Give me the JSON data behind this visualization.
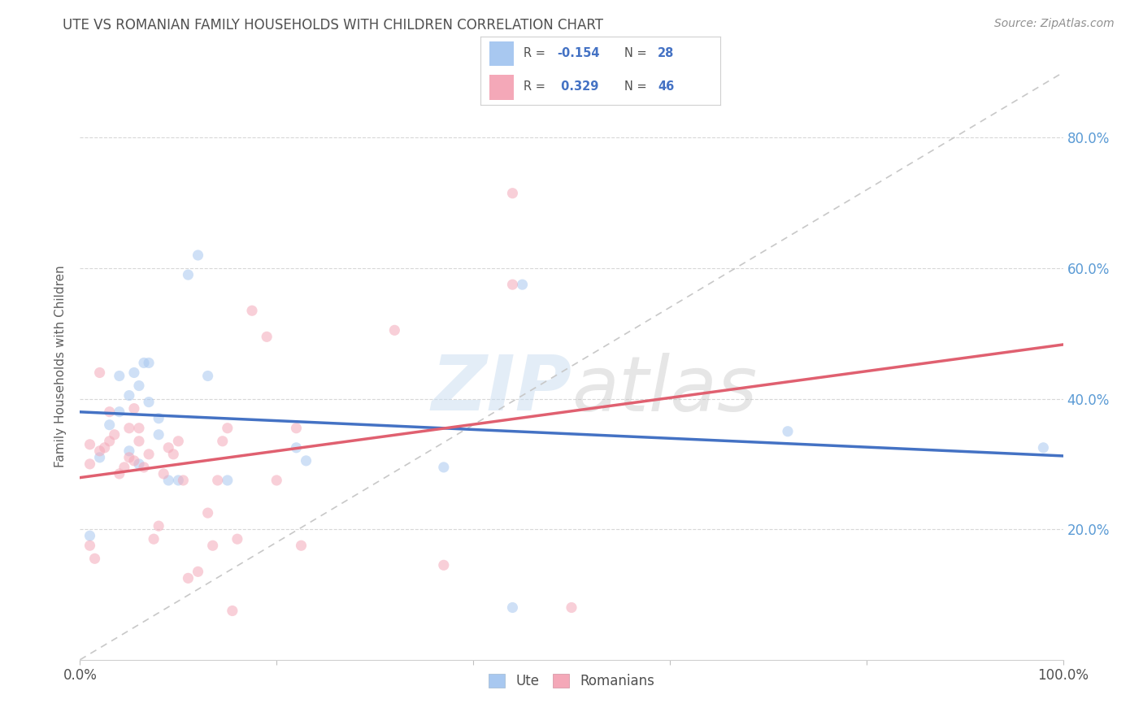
{
  "title": "UTE VS ROMANIAN FAMILY HOUSEHOLDS WITH CHILDREN CORRELATION CHART",
  "source": "Source: ZipAtlas.com",
  "ylabel": "Family Households with Children",
  "xlim": [
    0.0,
    1.0
  ],
  "ylim": [
    0.0,
    0.9
  ],
  "xtick_vals": [
    0.0,
    0.2,
    0.4,
    0.6,
    0.8,
    1.0
  ],
  "xtick_labels_sparse": {
    "0.0": "0.0%",
    "1.0": "100.0%"
  },
  "ytick_vals": [
    0.2,
    0.4,
    0.6,
    0.8
  ],
  "ytick_labels": [
    "20.0%",
    "40.0%",
    "60.0%",
    "80.0%"
  ],
  "ute_color": "#A8C8F0",
  "romanian_color": "#F4A8B8",
  "ute_line_color": "#4472C4",
  "romanian_line_color": "#E06070",
  "diagonal_color": "#C8C8C8",
  "ute_R": "-0.154",
  "ute_N": "28",
  "romanian_R": "0.329",
  "romanian_N": "46",
  "legend_label_ute": "Ute",
  "legend_label_romanian": "Romanians",
  "ute_x": [
    0.01,
    0.02,
    0.03,
    0.04,
    0.04,
    0.05,
    0.055,
    0.06,
    0.065,
    0.07,
    0.07,
    0.08,
    0.08,
    0.09,
    0.1,
    0.11,
    0.12,
    0.13,
    0.15,
    0.22,
    0.23,
    0.37,
    0.44,
    0.45,
    0.72,
    0.98,
    0.05,
    0.06
  ],
  "ute_y": [
    0.19,
    0.31,
    0.36,
    0.38,
    0.435,
    0.405,
    0.44,
    0.42,
    0.455,
    0.455,
    0.395,
    0.345,
    0.37,
    0.275,
    0.275,
    0.59,
    0.62,
    0.435,
    0.275,
    0.325,
    0.305,
    0.295,
    0.08,
    0.575,
    0.35,
    0.325,
    0.32,
    0.3
  ],
  "romanian_x": [
    0.01,
    0.01,
    0.01,
    0.015,
    0.02,
    0.02,
    0.025,
    0.03,
    0.03,
    0.035,
    0.04,
    0.045,
    0.05,
    0.05,
    0.055,
    0.055,
    0.06,
    0.06,
    0.065,
    0.07,
    0.075,
    0.08,
    0.085,
    0.09,
    0.095,
    0.1,
    0.105,
    0.11,
    0.12,
    0.13,
    0.135,
    0.14,
    0.145,
    0.15,
    0.155,
    0.16,
    0.175,
    0.19,
    0.2,
    0.22,
    0.225,
    0.32,
    0.37,
    0.44,
    0.44,
    0.5
  ],
  "romanian_y": [
    0.3,
    0.33,
    0.175,
    0.155,
    0.32,
    0.44,
    0.325,
    0.335,
    0.38,
    0.345,
    0.285,
    0.295,
    0.31,
    0.355,
    0.385,
    0.305,
    0.335,
    0.355,
    0.295,
    0.315,
    0.185,
    0.205,
    0.285,
    0.325,
    0.315,
    0.335,
    0.275,
    0.125,
    0.135,
    0.225,
    0.175,
    0.275,
    0.335,
    0.355,
    0.075,
    0.185,
    0.535,
    0.495,
    0.275,
    0.355,
    0.175,
    0.505,
    0.145,
    0.575,
    0.715,
    0.08
  ],
  "watermark_zip": "ZIP",
  "watermark_atlas": "atlas",
  "background_color": "#FFFFFF",
  "title_color": "#505050",
  "title_fontsize": 12,
  "marker_size": 90,
  "marker_alpha": 0.55,
  "grid_color": "#D8D8D8",
  "tick_label_color": "#5B9BD5",
  "source_color": "#909090"
}
